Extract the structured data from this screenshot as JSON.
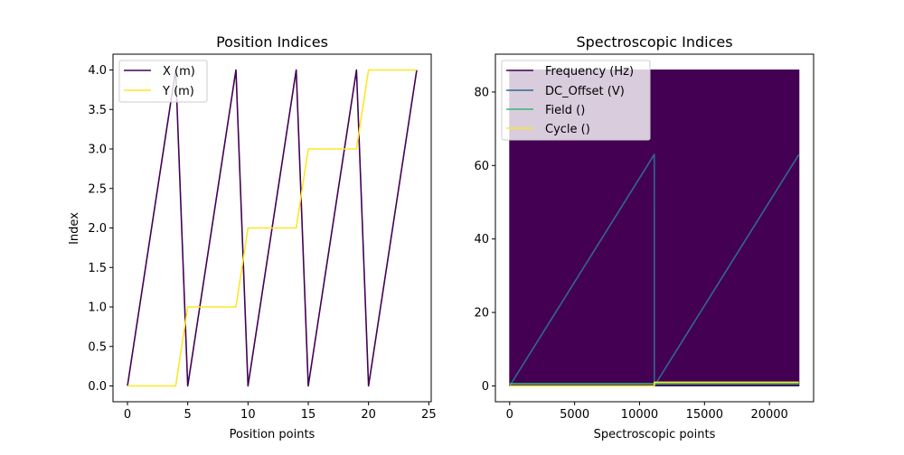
{
  "chart_data": [
    {
      "type": "line",
      "title": "Position Indices",
      "xlabel": "Position points",
      "ylabel": "Index",
      "xlim": [
        -1.2,
        25.2
      ],
      "ylim": [
        -0.2,
        4.2
      ],
      "xticks": [
        0,
        5,
        10,
        15,
        20,
        25
      ],
      "yticks": [
        0.0,
        0.5,
        1.0,
        1.5,
        2.0,
        2.5,
        3.0,
        3.5,
        4.0
      ],
      "yticklabels": [
        "0.0",
        "0.5",
        "1.0",
        "1.5",
        "2.0",
        "2.5",
        "3.0",
        "3.5",
        "4.0"
      ],
      "legend_location": "upper-left",
      "series": [
        {
          "name": "X (m)",
          "color": "#440154",
          "x": [
            0,
            1,
            2,
            3,
            4,
            5,
            6,
            7,
            8,
            9,
            10,
            11,
            12,
            13,
            14,
            15,
            16,
            17,
            18,
            19,
            20,
            21,
            22,
            23,
            24
          ],
          "y": [
            0,
            1,
            2,
            3,
            4,
            0,
            1,
            2,
            3,
            4,
            0,
            1,
            2,
            3,
            4,
            0,
            1,
            2,
            3,
            4,
            0,
            1,
            2,
            3,
            4
          ]
        },
        {
          "name": "Y (m)",
          "color": "#fde725",
          "x": [
            0,
            1,
            2,
            3,
            4,
            5,
            6,
            7,
            8,
            9,
            10,
            11,
            12,
            13,
            14,
            15,
            16,
            17,
            18,
            19,
            20,
            21,
            22,
            23,
            24
          ],
          "y": [
            0,
            0,
            0,
            0,
            0,
            1,
            1,
            1,
            1,
            1,
            2,
            2,
            2,
            2,
            2,
            3,
            3,
            3,
            3,
            3,
            4,
            4,
            4,
            4,
            4
          ]
        }
      ]
    },
    {
      "type": "line",
      "title": "Spectroscopic Indices",
      "xlabel": "Spectroscopic points",
      "ylabel": "",
      "xlim": [
        -1100,
        23400
      ],
      "ylim": [
        -4.3,
        90.3
      ],
      "xticks": [
        0,
        5000,
        10000,
        15000,
        20000
      ],
      "yticks": [
        0,
        20,
        40,
        60,
        80
      ],
      "legend_location": "upper-left",
      "series": [
        {
          "name": "Frequency (Hz)",
          "color": "#440154",
          "note_shape": "filled",
          "x_range": [
            0,
            22271
          ],
          "y_range": [
            0,
            86
          ]
        },
        {
          "name": "DC_Offset (V)",
          "color": "#31688e",
          "x": [
            0,
            11135,
            11136,
            22271
          ],
          "y": [
            0,
            63,
            0,
            63
          ]
        },
        {
          "name": "Field ()",
          "color": "#35b779",
          "x": [
            0,
            22271
          ],
          "y": [
            0.6,
            0.6
          ]
        },
        {
          "name": "Cycle ()",
          "color": "#fde725",
          "x": [
            0,
            11135,
            11136,
            22271
          ],
          "y": [
            0,
            0,
            1,
            1
          ]
        }
      ]
    }
  ]
}
